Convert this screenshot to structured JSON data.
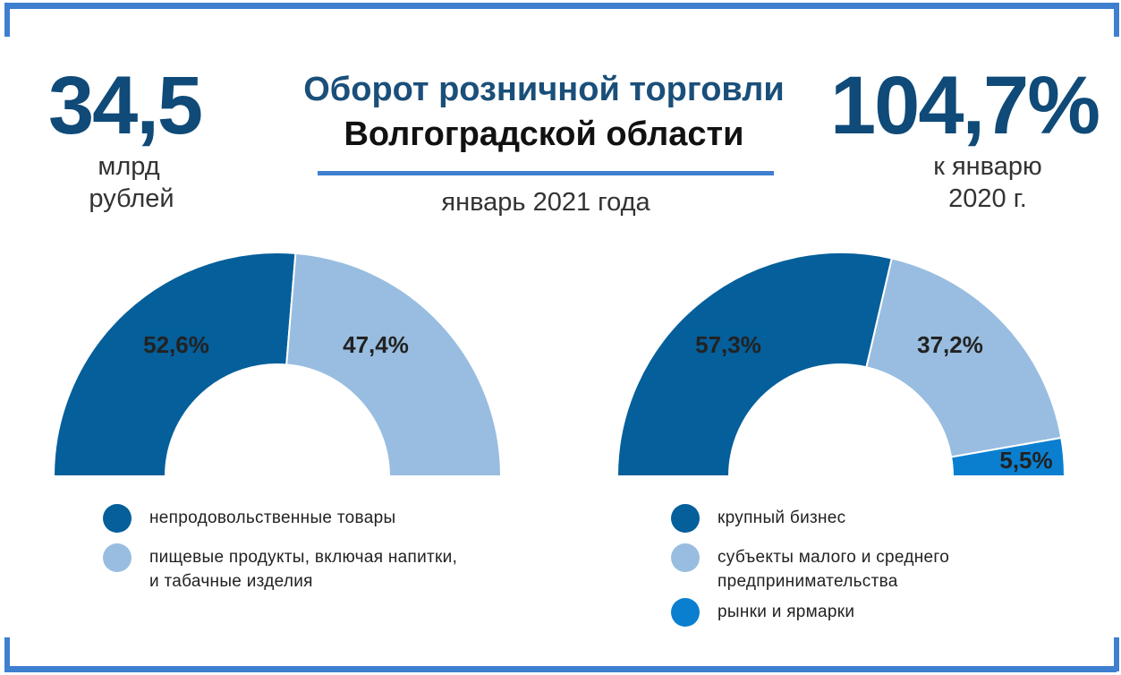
{
  "header": {
    "left_value": "34,5",
    "left_unit_line1": "млрд",
    "left_unit_line2": "рублей",
    "title_line1": "Оборот розничной торговли",
    "title_line2": "Волгоградской области",
    "period": "январь 2021 года",
    "right_value": "104,7%",
    "right_unit_line1": "к январю",
    "right_unit_line2": "2020 г."
  },
  "colors": {
    "dark_blue": "#045f9b",
    "light_blue": "#98bde0",
    "bright_blue": "#0a7fd0",
    "frame": "#3f7fd0",
    "number": "#0f4a78"
  },
  "chart_data": [
    {
      "type": "pie",
      "subtype": "half-donut",
      "values": [
        52.6,
        47.4
      ],
      "labels": [
        "52,6%",
        "47,4%"
      ],
      "colors": [
        "#045f9b",
        "#98bde0"
      ],
      "legend": [
        {
          "lines": [
            "непродовольственные товары"
          ],
          "color": "#045f9b"
        },
        {
          "lines": [
            "пищевые продукты, включая напитки,",
            "и табачные изделия"
          ],
          "color": "#98bde0"
        }
      ]
    },
    {
      "type": "pie",
      "subtype": "half-donut",
      "values": [
        57.3,
        37.2,
        5.5
      ],
      "labels": [
        "57,3%",
        "37,2%",
        "5,5%"
      ],
      "colors": [
        "#045f9b",
        "#98bde0",
        "#0a7fd0"
      ],
      "legend": [
        {
          "lines": [
            "крупный бизнес"
          ],
          "color": "#045f9b"
        },
        {
          "lines": [
            "субъекты малого и среднего",
            "предпринимательства"
          ],
          "color": "#98bde0"
        },
        {
          "lines": [
            "рынки и ярмарки"
          ],
          "color": "#0a7fd0"
        }
      ]
    }
  ]
}
